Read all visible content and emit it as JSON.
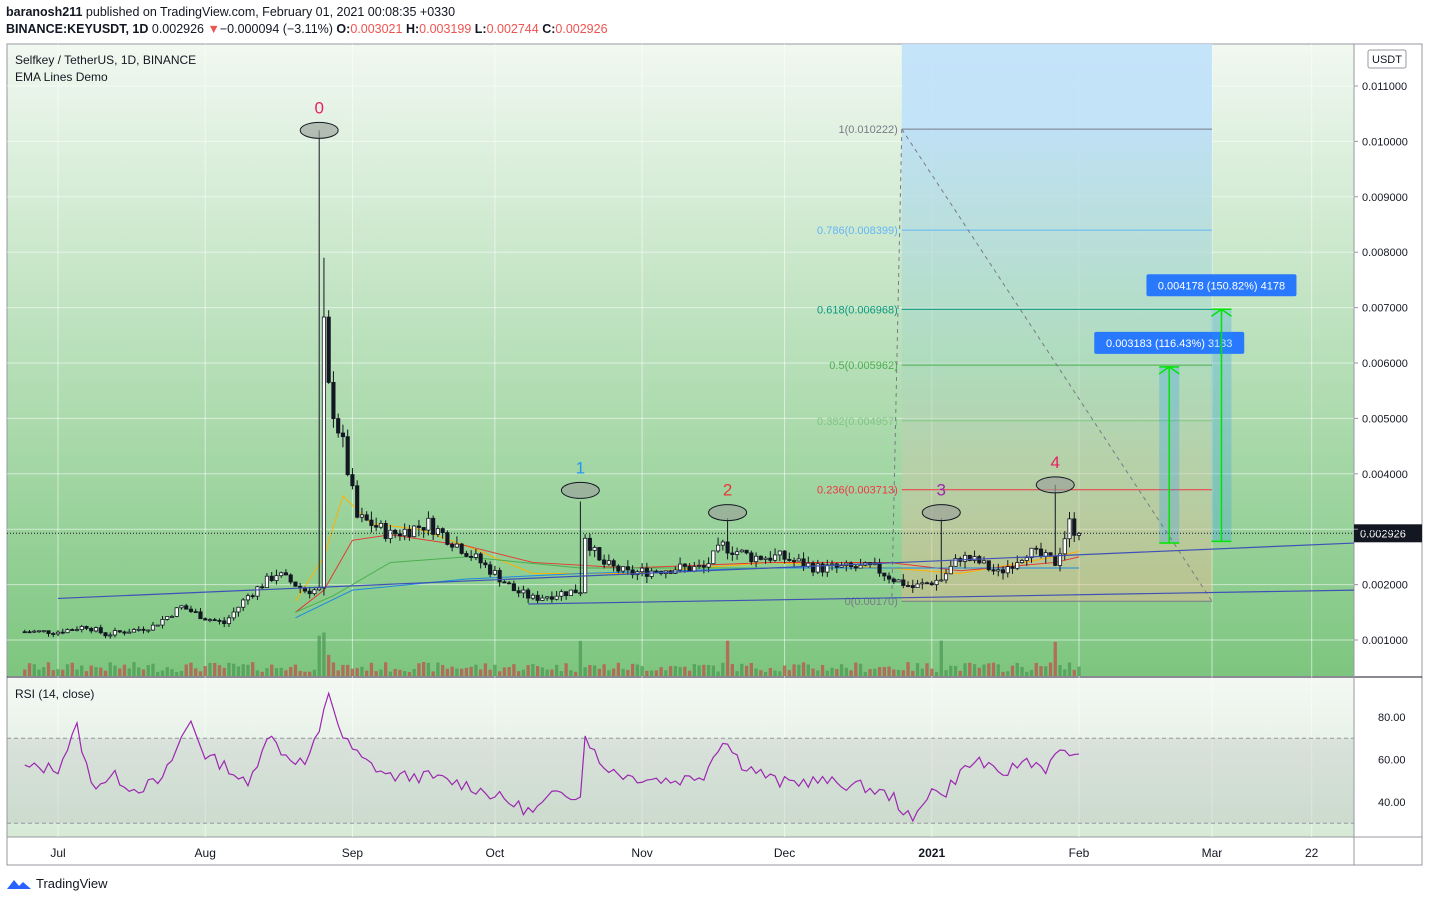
{
  "header": {
    "user": "baranosh211",
    "published_text": " published on TradingView.com, February 01, 2021 00:08:35 +0330",
    "symbol_line": "BINANCE:KEYUSDT, 1D",
    "last": "0.002926",
    "arrow": "▼",
    "change": "−0.000094 (−3.11%)",
    "o_label": "O:",
    "o": "0.003021",
    "h_label": "H:",
    "h": "0.003199",
    "l_label": "L:",
    "l": "0.002744",
    "c_label": "C:",
    "c": "0.002926"
  },
  "legend": {
    "title": "Selfkey / TetherUS, 1D, BINANCE",
    "indicator": "EMA Lines Demo",
    "rsi": "RSI (14, close)"
  },
  "currency_label": "USDT",
  "footer": {
    "brand": "TradingView"
  },
  "colors": {
    "bg_top": "#eef7ee",
    "bg_bottom": "#7ec882",
    "candle": "#131722",
    "rsi_line": "#9c27b0",
    "fib_zone_top": "#b3dcf8",
    "fib_zone_bottom": "#e8c8a0",
    "arrow": "#00e600",
    "label_box": "#2962ff"
  },
  "chart_data": {
    "type": "candlestick",
    "y_axis": {
      "min": 0.0005,
      "max": 0.0112,
      "ticks": [
        "0.011000",
        "0.010000",
        "0.009000",
        "0.008000",
        "0.007000",
        "0.006000",
        "0.005000",
        "0.004000",
        "0.003000",
        "0.002000",
        "0.001000"
      ],
      "tick_values": [
        0.011,
        0.01,
        0.009,
        0.008,
        0.007,
        0.006,
        0.005,
        0.004,
        0.003,
        0.002,
        0.001
      ],
      "last_price": 0.002926,
      "last_price_label": "0.002926"
    },
    "x_axis": {
      "labels": [
        "Jul",
        "Aug",
        "Sep",
        "Oct",
        "Nov",
        "Dec",
        "2021",
        "Feb",
        "Mar",
        "22"
      ],
      "label_days": [
        0,
        31,
        62,
        92,
        123,
        153,
        184,
        215,
        243,
        264
      ]
    },
    "price_path": [
      [
        0,
        0.00115
      ],
      [
        6,
        0.00125
      ],
      [
        10,
        0.0011
      ],
      [
        16,
        0.00118
      ],
      [
        20,
        0.00125
      ],
      [
        26,
        0.0016
      ],
      [
        31,
        0.0014
      ],
      [
        35,
        0.0013
      ],
      [
        40,
        0.0018
      ],
      [
        46,
        0.0022
      ],
      [
        52,
        0.0019
      ],
      [
        55,
        0.0019
      ],
      [
        56,
        0.0066
      ],
      [
        57,
        0.0055
      ],
      [
        60,
        0.0045
      ],
      [
        63,
        0.0032
      ],
      [
        66,
        0.0031
      ],
      [
        70,
        0.0029
      ],
      [
        78,
        0.0031
      ],
      [
        86,
        0.0026
      ],
      [
        92,
        0.0022
      ],
      [
        96,
        0.0019
      ],
      [
        100,
        0.00175
      ],
      [
        106,
        0.00185
      ],
      [
        110,
        0.0019
      ],
      [
        111,
        0.0029
      ],
      [
        114,
        0.0024
      ],
      [
        120,
        0.0022
      ],
      [
        130,
        0.0023
      ],
      [
        136,
        0.0023
      ],
      [
        140,
        0.0027
      ],
      [
        146,
        0.0025
      ],
      [
        152,
        0.0025
      ],
      [
        160,
        0.0023
      ],
      [
        172,
        0.0023
      ],
      [
        176,
        0.0021
      ],
      [
        180,
        0.00195
      ],
      [
        186,
        0.0021
      ],
      [
        190,
        0.0025
      ],
      [
        194,
        0.0024
      ],
      [
        198,
        0.0022
      ],
      [
        204,
        0.0026
      ],
      [
        210,
        0.0024
      ],
      [
        213,
        0.0031
      ],
      [
        215,
        0.0029
      ]
    ],
    "ema_lines": [
      {
        "color": "#ffb000",
        "points": [
          [
            50,
            0.0017
          ],
          [
            56,
            0.0025
          ],
          [
            60,
            0.0036
          ],
          [
            66,
            0.0031
          ],
          [
            76,
            0.003
          ],
          [
            86,
            0.0027
          ],
          [
            100,
            0.0022
          ],
          [
            120,
            0.0022
          ],
          [
            150,
            0.0024
          ],
          [
            175,
            0.0023
          ],
          [
            190,
            0.0022
          ],
          [
            210,
            0.0025
          ],
          [
            215,
            0.0026
          ]
        ]
      },
      {
        "color": "#e53935",
        "points": [
          [
            50,
            0.0015
          ],
          [
            56,
            0.0019
          ],
          [
            62,
            0.0028
          ],
          [
            70,
            0.0029
          ],
          [
            86,
            0.0027
          ],
          [
            100,
            0.0024
          ],
          [
            120,
            0.0023
          ],
          [
            150,
            0.0024
          ],
          [
            175,
            0.0024
          ],
          [
            190,
            0.00225
          ],
          [
            210,
            0.0024
          ],
          [
            215,
            0.0025
          ]
        ]
      },
      {
        "color": "#4caf50",
        "points": [
          [
            50,
            0.0015
          ],
          [
            58,
            0.0018
          ],
          [
            70,
            0.0024
          ],
          [
            86,
            0.0025
          ],
          [
            110,
            0.0023
          ],
          [
            150,
            0.0023
          ],
          [
            180,
            0.0023
          ],
          [
            215,
            0.0023
          ]
        ]
      },
      {
        "color": "#1e88e5",
        "points": [
          [
            50,
            0.0014
          ],
          [
            62,
            0.0019
          ],
          [
            86,
            0.0021
          ],
          [
            110,
            0.0022
          ],
          [
            150,
            0.0023
          ],
          [
            180,
            0.0023
          ],
          [
            215,
            0.0023
          ]
        ]
      }
    ],
    "trendlines": [
      {
        "color": "#3f51b5",
        "points": [
          [
            0,
            0.00175
          ],
          [
            270,
            0.00275
          ]
        ]
      },
      {
        "color": "#3f51b5",
        "points": [
          [
            99,
            0.00165
          ],
          [
            270,
            0.0019
          ]
        ]
      }
    ],
    "wave_labels": [
      {
        "text": "0",
        "day": 55,
        "price": 0.0102,
        "color": "#e91e63"
      },
      {
        "text": "1",
        "day": 110,
        "price": 0.0037,
        "color": "#2196f3"
      },
      {
        "text": "2",
        "day": 141,
        "price": 0.0033,
        "color": "#e53935"
      },
      {
        "text": "3",
        "day": 186,
        "price": 0.0033,
        "color": "#9c27b0"
      },
      {
        "text": "4",
        "day": 210,
        "price": 0.0038,
        "color": "#e91e63"
      }
    ],
    "fib_levels": [
      {
        "label": "1(0.010222)",
        "price": 0.010222,
        "color": "#787b86"
      },
      {
        "label": "0.786(0.008399)",
        "price": 0.008399,
        "color": "#64b5f6"
      },
      {
        "label": "0.618(0.006968)",
        "price": 0.006968,
        "color": "#089981"
      },
      {
        "label": "0.5(0.005962)",
        "price": 0.005962,
        "color": "#4caf50"
      },
      {
        "label": "0.382(0.004957)",
        "price": 0.004957,
        "color": "#81c784"
      },
      {
        "label": "0.236(0.003713)",
        "price": 0.003713,
        "color": "#f23645"
      },
      {
        "label": "0(0.00170)",
        "price": 0.0017,
        "color": "#787b86"
      }
    ],
    "fib_range_days": [
      184,
      243
    ],
    "measure_boxes": [
      {
        "label": "0.003183 (116.43%) 3183",
        "from": 0.00275,
        "to": 0.00593,
        "day": 234
      },
      {
        "label": "0.004178 (150.82%) 4178",
        "from": 0.00278,
        "to": 0.00697,
        "day": 245
      }
    ],
    "rsi": {
      "name": "RSI (14, close)",
      "ticks": [
        "80.00",
        "60.00",
        "40.00"
      ],
      "tick_values": [
        80,
        60,
        40
      ],
      "upper_band": 70,
      "lower_band": 30,
      "path": [
        [
          0,
          56
        ],
        [
          4,
          75
        ],
        [
          7,
          48
        ],
        [
          12,
          52
        ],
        [
          16,
          46
        ],
        [
          22,
          50
        ],
        [
          26,
          70
        ],
        [
          28,
          78
        ],
        [
          31,
          62
        ],
        [
          36,
          56
        ],
        [
          40,
          47
        ],
        [
          44,
          72
        ],
        [
          48,
          62
        ],
        [
          52,
          58
        ],
        [
          55,
          72
        ],
        [
          57,
          92
        ],
        [
          60,
          70
        ],
        [
          64,
          60
        ],
        [
          70,
          52
        ],
        [
          78,
          52
        ],
        [
          86,
          48
        ],
        [
          92,
          43
        ],
        [
          100,
          35
        ],
        [
          106,
          46
        ],
        [
          110,
          42
        ],
        [
          111,
          73
        ],
        [
          114,
          58
        ],
        [
          120,
          52
        ],
        [
          130,
          50
        ],
        [
          136,
          53
        ],
        [
          140,
          70
        ],
        [
          144,
          58
        ],
        [
          152,
          49
        ],
        [
          160,
          50
        ],
        [
          170,
          47
        ],
        [
          176,
          42
        ],
        [
          180,
          30
        ],
        [
          184,
          48
        ],
        [
          186,
          42
        ],
        [
          190,
          54
        ],
        [
          194,
          60
        ],
        [
          198,
          52
        ],
        [
          204,
          60
        ],
        [
          208,
          56
        ],
        [
          212,
          65
        ],
        [
          215,
          60
        ]
      ]
    }
  }
}
